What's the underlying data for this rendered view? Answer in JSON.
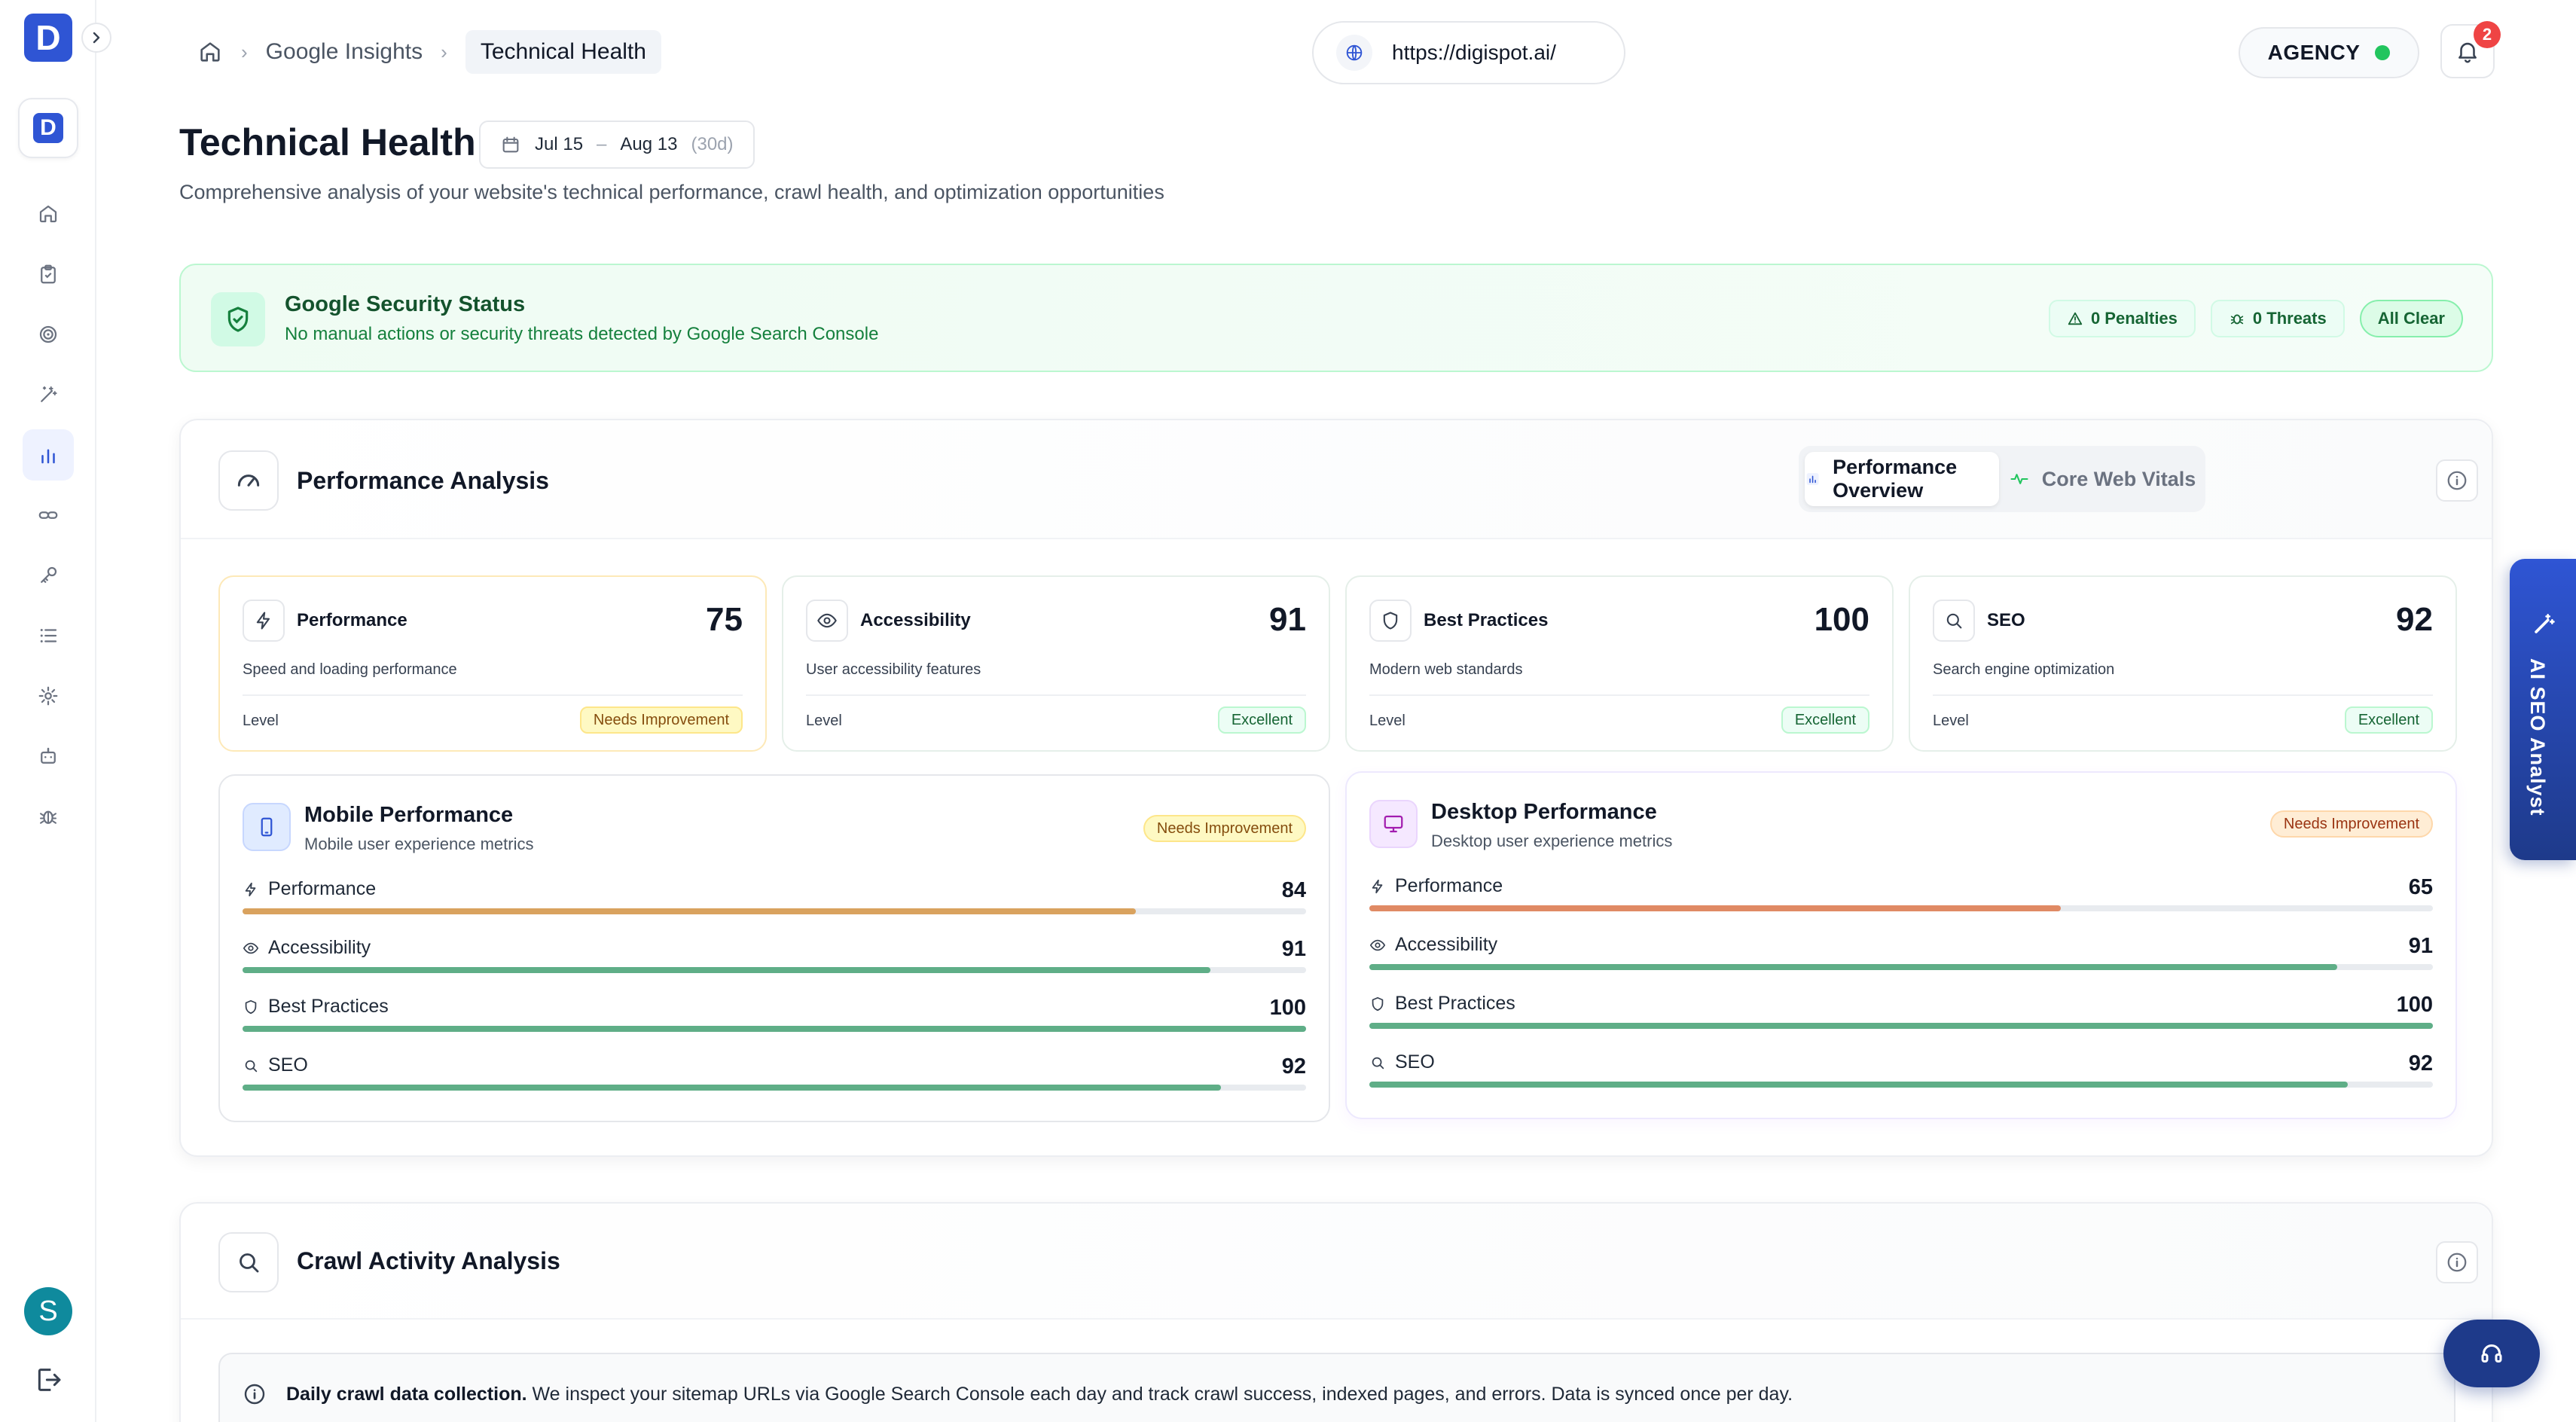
{
  "rail": {
    "logo_letter": "D",
    "brand_letter": "D",
    "nav_icons": [
      "home-icon",
      "clipboard-icon",
      "target-icon",
      "magic-wand-icon",
      "bar-chart-icon",
      "link-icon",
      "key-icon",
      "list-icon",
      "gear-icon",
      "robot-icon",
      "bug-icon"
    ],
    "active_index": 4,
    "avatar_letter": "S"
  },
  "header": {
    "breadcrumb": {
      "parent": "Google Insights",
      "current": "Technical Health"
    },
    "url": "https://digispot.ai/",
    "plan": "AGENCY",
    "notifications_count": "2"
  },
  "page": {
    "title": "Technical Health",
    "date_from": "Jul 15",
    "date_sep": "–",
    "date_to": "Aug 13",
    "date_span": "(30d)",
    "subtitle": "Comprehensive analysis of your website's technical performance, crawl health, and optimization opportunities"
  },
  "security": {
    "title": "Google Security Status",
    "description": "No manual actions or security threats detected by Google Search Console",
    "penalties": "0 Penalties",
    "threats": "0 Threats",
    "status": "All Clear"
  },
  "performance": {
    "title": "Performance Analysis",
    "tabs": [
      {
        "label": "Performance Overview",
        "active": true
      },
      {
        "label": "Core Web Vitals",
        "active": false
      }
    ],
    "scores": [
      {
        "label": "Performance",
        "value": "75",
        "description": "Speed and loading performance",
        "level_label": "Level",
        "level": "Needs Improvement",
        "tone": "warn",
        "icon": "lightning-icon"
      },
      {
        "label": "Accessibility",
        "value": "91",
        "description": "User accessibility features",
        "level_label": "Level",
        "level": "Excellent",
        "tone": "good",
        "icon": "eye-icon"
      },
      {
        "label": "Best Practices",
        "value": "100",
        "description": "Modern web standards",
        "level_label": "Level",
        "level": "Excellent",
        "tone": "good",
        "icon": "shield-icon"
      },
      {
        "label": "SEO",
        "value": "92",
        "description": "Search engine optimization",
        "level_label": "Level",
        "level": "Excellent",
        "tone": "good",
        "icon": "search-icon"
      }
    ],
    "mobile": {
      "title": "Mobile Performance",
      "subtitle": "Mobile user experience metrics",
      "status": "Needs Improvement",
      "metrics": [
        {
          "label": "Performance",
          "value": "84",
          "pct": 0.84,
          "color": "#d9a25e"
        },
        {
          "label": "Accessibility",
          "value": "91",
          "pct": 0.91,
          "color": "#5fae87"
        },
        {
          "label": "Best Practices",
          "value": "100",
          "pct": 1.0,
          "color": "#5fae87"
        },
        {
          "label": "SEO",
          "value": "92",
          "pct": 0.92,
          "color": "#5fae87"
        }
      ]
    },
    "desktop": {
      "title": "Desktop Performance",
      "subtitle": "Desktop user experience metrics",
      "status": "Needs Improvement",
      "metrics": [
        {
          "label": "Performance",
          "value": "65",
          "pct": 0.65,
          "color": "#e08a64"
        },
        {
          "label": "Accessibility",
          "value": "91",
          "pct": 0.91,
          "color": "#5fae87"
        },
        {
          "label": "Best Practices",
          "value": "100",
          "pct": 1.0,
          "color": "#5fae87"
        },
        {
          "label": "SEO",
          "value": "92",
          "pct": 0.92,
          "color": "#5fae87"
        }
      ]
    }
  },
  "crawl": {
    "title": "Crawl Activity Analysis",
    "notice_bold": "Daily crawl data collection.",
    "notice_text": "We inspect your sitemap URLs via Google Search Console each day and track crawl success, indexed pages, and errors. Data is synced once per day."
  },
  "floating": {
    "ai_label": "AI SEO Analyst"
  },
  "colors": {
    "accent": "#2f55d4",
    "success": "#22c55e",
    "warning": "#d9a25e",
    "danger": "#ef4444"
  }
}
